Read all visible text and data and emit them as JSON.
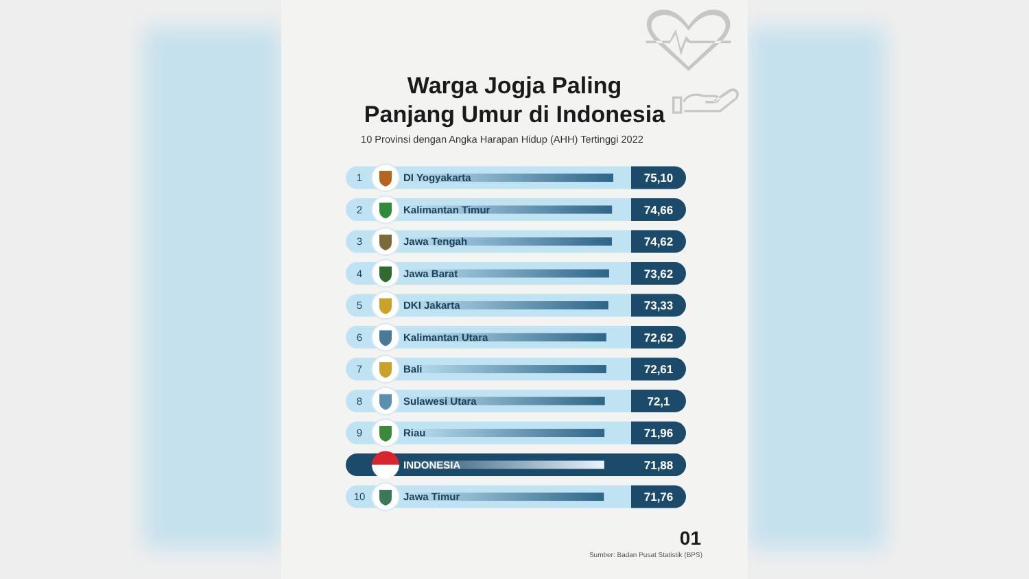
{
  "chart_data": {
    "type": "bar",
    "orientation": "horizontal",
    "title": "Warga Jogja Paling Panjang Umur di Indonesia",
    "subtitle": "10 Provinsi dengan Angka Harapan Hidup (AHH) Tertinggi 2022",
    "categories": [
      "DI Yogyakarta",
      "Kalimantan Timur",
      "Jawa Tengah",
      "Jawa Barat",
      "DKI Jakarta",
      "Kalimantan Utara",
      "Bali",
      "Sulawesi Utara",
      "Riau",
      "INDONESIA",
      "Jawa Timur"
    ],
    "values": [
      75.1,
      74.66,
      74.62,
      73.62,
      73.33,
      72.62,
      72.61,
      72.1,
      71.96,
      71.88,
      71.76
    ],
    "value_labels": [
      "75,10",
      "74,66",
      "74,62",
      "73,62",
      "73,33",
      "72,62",
      "72,61",
      "72,1",
      "71,96",
      "71,88",
      "71,76"
    ],
    "colors": [
      "#2f6587",
      "#2f6587",
      "#2f6587",
      "#2f6587",
      "#2f6587",
      "#2f6587",
      "#2f6587",
      "#2f6587",
      "#2f6587",
      "#e8f4fb",
      "#2f6587"
    ],
    "annotations": [
      "1",
      "2",
      "3",
      "4",
      "5",
      "6",
      "7",
      "8",
      "9",
      "10",
      "01",
      "Sumber: Badan Pusat Statistik (BPS)"
    ]
  }
}
